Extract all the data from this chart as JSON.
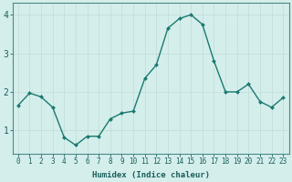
{
  "x": [
    0,
    1,
    2,
    3,
    4,
    5,
    6,
    7,
    8,
    9,
    10,
    11,
    12,
    13,
    14,
    15,
    16,
    17,
    18,
    19,
    20,
    21,
    22,
    23
  ],
  "y": [
    1.65,
    1.97,
    1.87,
    1.6,
    0.82,
    0.62,
    0.85,
    0.85,
    1.3,
    1.45,
    1.5,
    2.35,
    2.7,
    3.65,
    3.9,
    4.0,
    3.75,
    2.8,
    2.0,
    2.0,
    2.2,
    1.75,
    1.6,
    1.85
  ],
  "line_color": "#1a7a6e",
  "marker": "D",
  "marker_size": 2.0,
  "bg_color": "#d4eeec",
  "grid_color": "#c0dbd8",
  "xlabel": "Humidex (Indice chaleur)",
  "ylabel": "",
  "title": "",
  "ylim": [
    0.4,
    4.3
  ],
  "xlim": [
    -0.5,
    23.5
  ],
  "yticks": [
    1,
    2,
    3,
    4
  ],
  "xticks": [
    0,
    1,
    2,
    3,
    4,
    5,
    6,
    7,
    8,
    9,
    10,
    11,
    12,
    13,
    14,
    15,
    16,
    17,
    18,
    19,
    20,
    21,
    22,
    23
  ],
  "tick_color": "#1a5f5a",
  "spine_color": "#4a8a84",
  "label_fontsize": 6.5,
  "tick_fontsize": 5.5,
  "ytick_fontsize": 7.0,
  "line_width": 1.0,
  "grid_lw": 0.5
}
